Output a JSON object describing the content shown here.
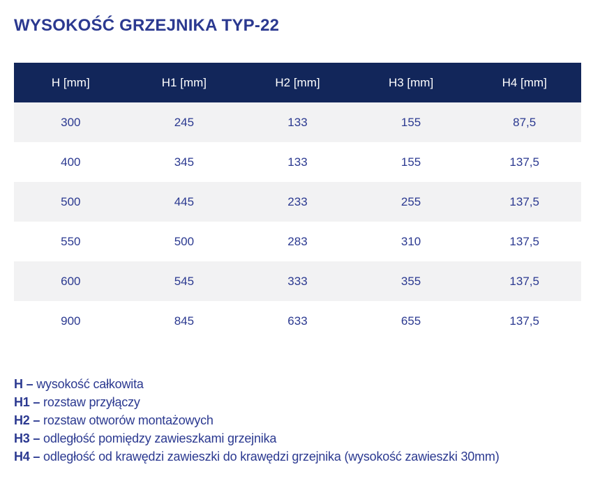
{
  "page": {
    "title": "WYSOKOŚĆ GRZEJNIKA TYP-22"
  },
  "table": {
    "headers": [
      "H [mm]",
      "H1 [mm]",
      "H2 [mm]",
      "H3 [mm]",
      "H4 [mm]"
    ],
    "rows": [
      [
        "300",
        "245",
        "133",
        "155",
        "87,5"
      ],
      [
        "400",
        "345",
        "133",
        "155",
        "137,5"
      ],
      [
        "500",
        "445",
        "233",
        "255",
        "137,5"
      ],
      [
        "550",
        "500",
        "283",
        "310",
        "137,5"
      ],
      [
        "600",
        "545",
        "333",
        "355",
        "137,5"
      ],
      [
        "900",
        "845",
        "633",
        "655",
        "137,5"
      ]
    ]
  },
  "legend": [
    {
      "term": "H –",
      "definition": "wysokość całkowita"
    },
    {
      "term": "H1 –",
      "definition": "rozstaw przyłączy"
    },
    {
      "term": "H2 –",
      "definition": "rozstaw otworów montażowych"
    },
    {
      "term": "H3 –",
      "definition": "odległość pomiędzy zawieszkami grzejnika"
    },
    {
      "term": "H4 –",
      "definition": "odległość od krawędzi zawieszki do krawędzi grzejnika (wysokość zawieszki 30mm)"
    }
  ],
  "colors": {
    "header_bg": "#12265A",
    "header_text": "#FFFFFF",
    "text_blue": "#2B3990",
    "row_alt_bg": "#F2F2F3",
    "row_bg": "#FFFFFF",
    "page_bg": "#FFFFFF"
  }
}
